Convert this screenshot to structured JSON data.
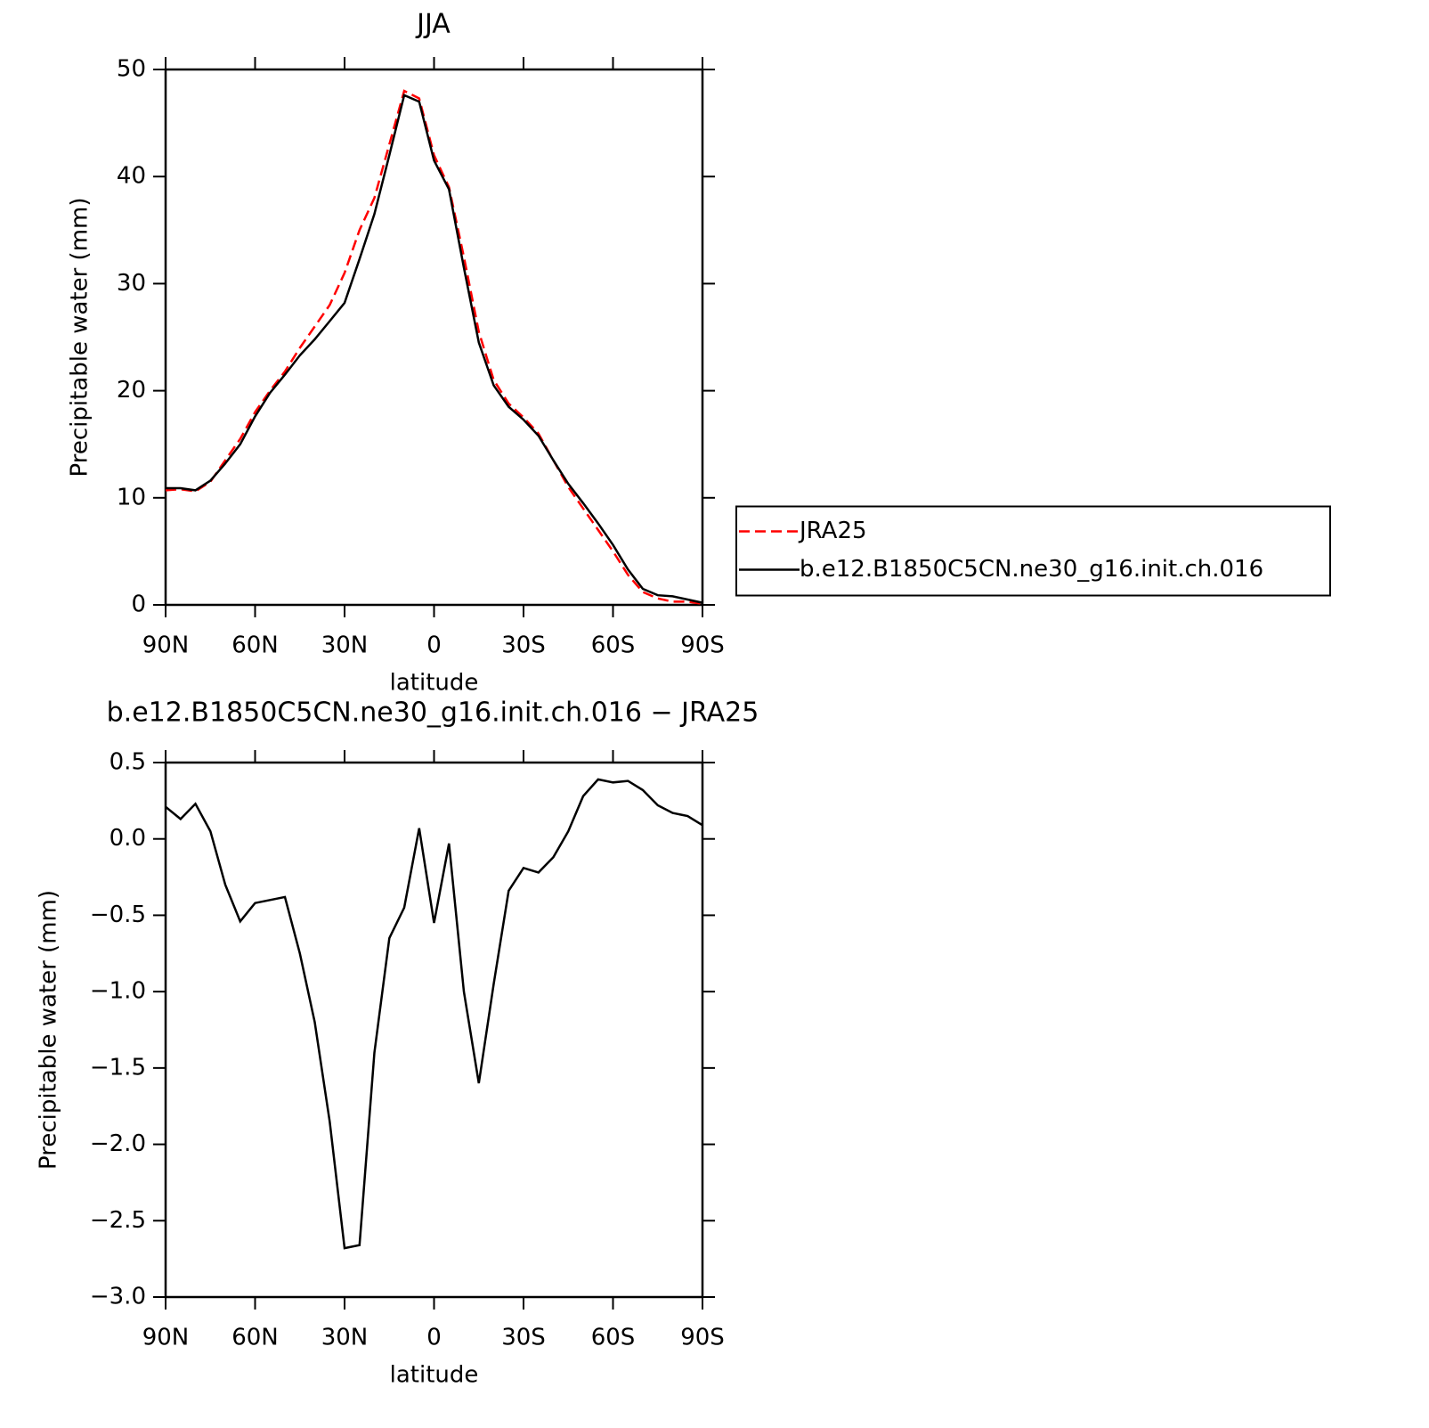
{
  "chart_data": [
    {
      "type": "line",
      "title": "JJA",
      "x_label": "latitude",
      "y_label": "Precipitable water (mm)",
      "x": [
        90,
        85,
        80,
        75,
        70,
        65,
        60,
        55,
        50,
        45,
        40,
        35,
        30,
        25,
        20,
        15,
        10,
        5,
        0,
        -5,
        -10,
        -15,
        -20,
        -25,
        -30,
        -35,
        -40,
        -45,
        -50,
        -55,
        -60,
        -65,
        -70,
        -75,
        -80,
        -85,
        -90
      ],
      "xlim": [
        90,
        -90
      ],
      "xticks": [
        {
          "value": 90,
          "label": "90N"
        },
        {
          "value": 60,
          "label": "60N"
        },
        {
          "value": 30,
          "label": "30N"
        },
        0,
        {
          "value": -30,
          "label": "30S"
        },
        {
          "value": -60,
          "label": "60S"
        },
        {
          "value": -90,
          "label": "90S"
        }
      ],
      "ylim": [
        0,
        50
      ],
      "yticks": [
        0,
        10,
        20,
        30,
        40,
        50
      ],
      "legend": "right",
      "series": [
        {
          "name": "JRA25",
          "color": "#ff0000",
          "style": "dashed",
          "values": [
            10.7,
            10.8,
            10.6,
            11.5,
            13.5,
            15.5,
            18.0,
            20.0,
            21.8,
            24.0,
            26.0,
            28.0,
            31.0,
            35.0,
            38.0,
            43.0,
            48.0,
            47.3,
            42.0,
            39.0,
            32.5,
            25.5,
            21.0,
            18.8,
            17.5,
            16.0,
            13.5,
            11.0,
            9.0,
            7.0,
            5.0,
            2.8,
            1.2,
            0.6,
            0.3,
            0.3,
            0.1
          ]
        },
        {
          "name": "b.e12.B1850C5CN.ne30_g16.init.ch.016",
          "color": "#000000",
          "style": "solid",
          "values": [
            10.9,
            10.9,
            10.7,
            11.6,
            13.2,
            15.0,
            17.6,
            19.8,
            21.5,
            23.3,
            24.8,
            26.5,
            28.2,
            32.3,
            36.5,
            42.0,
            47.6,
            47.0,
            41.5,
            38.8,
            31.5,
            24.5,
            20.5,
            18.5,
            17.3,
            15.8,
            13.5,
            11.3,
            9.5,
            7.6,
            5.6,
            3.3,
            1.5,
            0.9,
            0.8,
            0.5,
            0.2
          ]
        }
      ]
    },
    {
      "type": "line",
      "title": "b.e12.B1850C5CN.ne30_g16.init.ch.016 − JRA25",
      "x_label": "latitude",
      "y_label": "Precipitable water (mm)",
      "x": [
        90,
        85,
        80,
        75,
        70,
        65,
        60,
        55,
        50,
        45,
        40,
        35,
        30,
        25,
        20,
        15,
        10,
        5,
        0,
        -5,
        -10,
        -15,
        -20,
        -25,
        -30,
        -35,
        -40,
        -45,
        -50,
        -55,
        -60,
        -65,
        -70,
        -75,
        -80,
        -85,
        -90
      ],
      "xlim": [
        90,
        -90
      ],
      "xticks": [
        {
          "value": 90,
          "label": "90N"
        },
        {
          "value": 60,
          "label": "60N"
        },
        {
          "value": 30,
          "label": "30N"
        },
        0,
        {
          "value": -30,
          "label": "30S"
        },
        {
          "value": -60,
          "label": "60S"
        },
        {
          "value": -90,
          "label": "90S"
        }
      ],
      "ylim": [
        -3,
        0.5
      ],
      "yticks": [
        0.5,
        {
          "value": 0,
          "label": "0.0"
        },
        {
          "value": -0.5,
          "label": "−0.5"
        },
        {
          "value": -1,
          "label": "−1.0"
        },
        {
          "value": -1.5,
          "label": "−1.5"
        },
        {
          "value": -2,
          "label": "−2.0"
        },
        {
          "value": -2.5,
          "label": "−2.5"
        },
        {
          "value": -3,
          "label": "−3.0"
        }
      ],
      "color": "#000000",
      "values": [
        0.21,
        0.13,
        0.23,
        0.05,
        -0.3,
        -0.54,
        -0.42,
        -0.4,
        -0.38,
        -0.75,
        -1.2,
        -1.85,
        -2.68,
        -2.66,
        -1.4,
        -0.65,
        -0.45,
        0.07,
        -0.55,
        -0.03,
        -1.0,
        -1.6,
        -0.95,
        -0.34,
        -0.19,
        -0.22,
        -0.12,
        0.05,
        0.28,
        0.39,
        0.37,
        0.38,
        0.32,
        0.22,
        0.17,
        0.15,
        0.09
      ]
    }
  ]
}
